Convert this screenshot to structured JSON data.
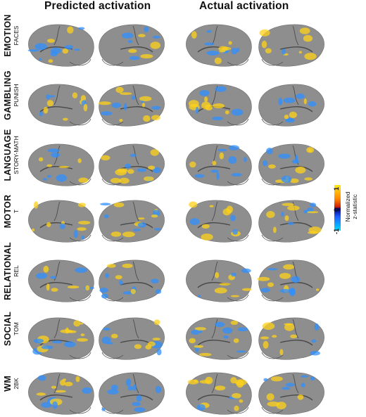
{
  "headers": {
    "predicted": "Predicted activation",
    "actual": "Actual activation"
  },
  "rows": [
    {
      "task": "EMOTION",
      "contrast": "FACES"
    },
    {
      "task": "GAMBLING",
      "contrast": "PUNISH"
    },
    {
      "task": "LANGUAGE",
      "contrast": "STORY-MATH"
    },
    {
      "task": "MOTOR",
      "contrast": "T"
    },
    {
      "task": "RELATIONAL",
      "contrast": "REL"
    },
    {
      "task": "SOCIAL",
      "contrast": "TOM"
    },
    {
      "task": "WM",
      "contrast": "2BK"
    }
  ],
  "colorbar": {
    "label_line1": "Normalized",
    "label_line2": "z-statistic",
    "max": "1",
    "mid": "0",
    "min": "-1"
  },
  "colors": {
    "cortex": "#8e8e8e",
    "sulcus": "#4a4a4a",
    "positive": "#ffd21a",
    "negative": "#2f8fff"
  }
}
